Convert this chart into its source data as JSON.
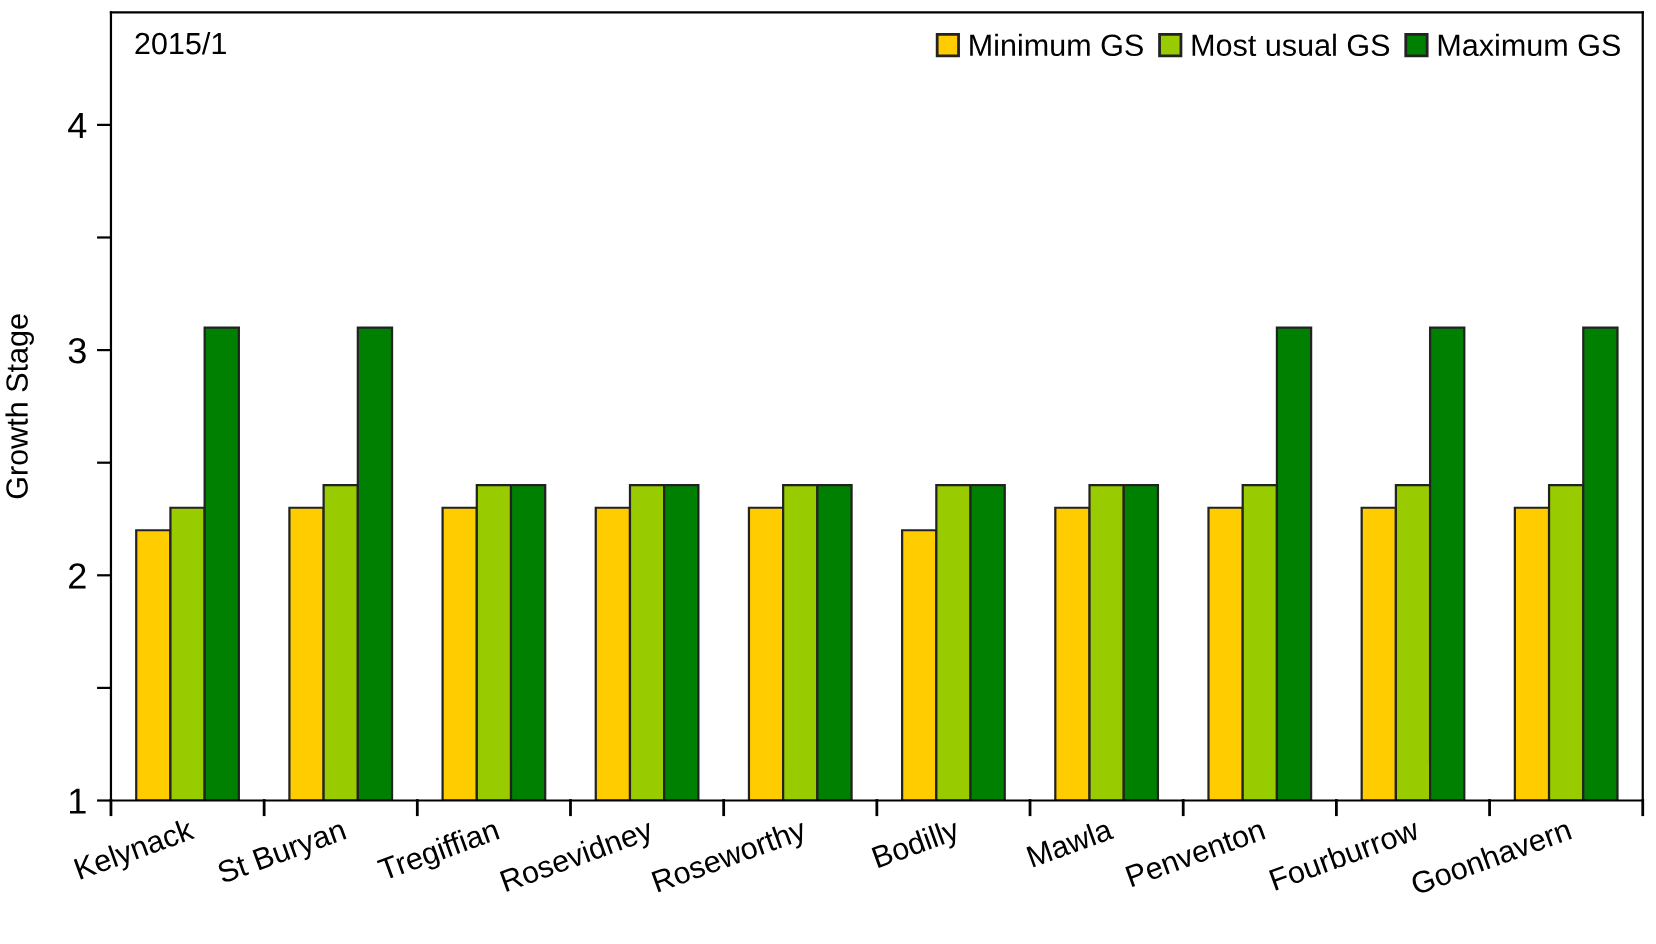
{
  "chart_data": {
    "type": "bar",
    "ylabel": "Growth Stage",
    "annotations": [
      "2015/1"
    ],
    "categories": [
      "Kelynack",
      "St Buryan",
      "Tregiffian",
      "Rosevidney",
      "Roseworthy",
      "Bodilly",
      "Mawla",
      "Penventon",
      "Fourburrow",
      "Goonhavern"
    ],
    "series": [
      {
        "name": "Minimum GS",
        "color": "#ffcc00",
        "values": [
          2.2,
          2.3,
          2.3,
          2.3,
          2.3,
          2.2,
          2.3,
          2.3,
          2.3,
          2.3
        ]
      },
      {
        "name": "Most usual GS",
        "color": "#99cc00",
        "values": [
          2.3,
          2.4,
          2.4,
          2.4,
          2.4,
          2.4,
          2.4,
          2.4,
          2.4,
          2.4
        ]
      },
      {
        "name": "Maximum GS",
        "color": "#008000",
        "values": [
          3.1,
          3.1,
          2.4,
          2.4,
          2.4,
          2.4,
          2.4,
          3.1,
          3.1,
          3.1
        ]
      }
    ],
    "ylim": [
      1,
      4.5
    ],
    "yticks": [
      1,
      {
        "value": 1.5,
        "label": null
      },
      2,
      {
        "value": 2.5,
        "label": null
      },
      3,
      {
        "value": 3.5,
        "label": null
      },
      4
    ],
    "grid": false,
    "legend": "top right"
  }
}
